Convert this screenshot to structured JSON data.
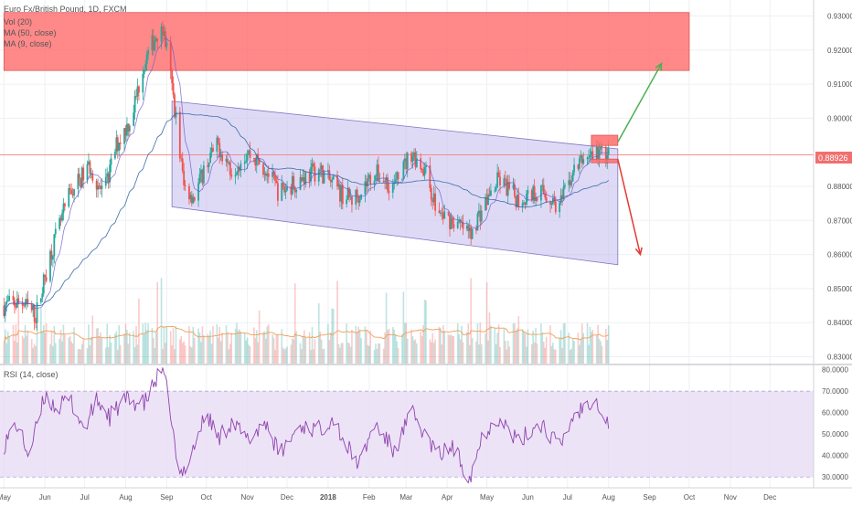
{
  "symbol_title": "Euro Fx/British Pound, 1D, FXCM",
  "indicators": [
    "Vol (20)",
    "MA (50, close)",
    "MA (9, close)"
  ],
  "rsi_label": "RSI (14, close)",
  "current_price_label": "0.88926",
  "colors": {
    "up": "#26a69a",
    "down": "#ef5350",
    "channel_fill": "#c8c2ee",
    "channel_stroke": "#7e75c4",
    "resistance_zone": "#ff6b6b",
    "rsi_line": "#8e44ad",
    "rsi_band": "#e9dcf5",
    "ma_long": "#3b6ea8",
    "ma_short": "#6a5acd",
    "vol_ma": "#f0a058",
    "arrow_up": "#4caf50",
    "arrow_down": "#e53935",
    "price_line": "#f08080"
  },
  "chart_data": [
    {
      "type": "candlestick",
      "title": "Euro Fx/British Pound, 1D, FXCM",
      "x_tick_labels": [
        "May",
        "Jun",
        "Jul",
        "Aug",
        "Sep",
        "Oct",
        "Nov",
        "Dec",
        "2018",
        "Feb",
        "Mar",
        "Apr",
        "May",
        "Jun",
        "Jul",
        "Aug",
        "Sep",
        "Oct",
        "Nov",
        "Dec"
      ],
      "y_tick_labels": [
        "0.93000",
        "0.92000",
        "0.91000",
        "0.90000",
        "0.88000",
        "0.87000",
        "0.86000",
        "0.85000",
        "0.84000",
        "0.83000"
      ],
      "ylim": [
        0.828,
        0.932
      ],
      "current_price": 0.88926,
      "trend": [
        [
          "2017-05-01",
          0.845
        ],
        [
          "2017-05-15",
          0.846
        ],
        [
          "2017-05-25",
          0.842
        ],
        [
          "2017-06-05",
          0.86
        ],
        [
          "2017-06-20",
          0.878
        ],
        [
          "2017-07-05",
          0.886
        ],
        [
          "2017-07-15",
          0.877
        ],
        [
          "2017-07-25",
          0.892
        ],
        [
          "2017-08-05",
          0.9
        ],
        [
          "2017-08-15",
          0.916
        ],
        [
          "2017-08-28",
          0.928
        ],
        [
          "2017-09-02",
          0.918
        ],
        [
          "2017-09-08",
          0.9
        ],
        [
          "2017-09-14",
          0.88
        ],
        [
          "2017-09-22",
          0.877
        ],
        [
          "2017-10-01",
          0.887
        ],
        [
          "2017-10-10",
          0.892
        ],
        [
          "2017-10-20",
          0.885
        ],
        [
          "2017-11-01",
          0.89
        ],
        [
          "2017-11-15",
          0.885
        ],
        [
          "2017-11-25",
          0.878
        ],
        [
          "2017-12-10",
          0.882
        ],
        [
          "2017-12-25",
          0.885
        ],
        [
          "2018-01-10",
          0.878
        ],
        [
          "2018-01-20",
          0.876
        ],
        [
          "2018-02-05",
          0.884
        ],
        [
          "2018-02-20",
          0.88
        ],
        [
          "2018-03-05",
          0.89
        ],
        [
          "2018-03-15",
          0.885
        ],
        [
          "2018-03-25",
          0.872
        ],
        [
          "2018-04-05",
          0.87
        ],
        [
          "2018-04-18",
          0.866
        ],
        [
          "2018-04-28",
          0.874
        ],
        [
          "2018-05-10",
          0.882
        ],
        [
          "2018-05-25",
          0.876
        ],
        [
          "2018-06-10",
          0.879
        ],
        [
          "2018-06-25",
          0.874
        ],
        [
          "2018-07-05",
          0.884
        ],
        [
          "2018-07-15",
          0.889
        ],
        [
          "2018-07-25",
          0.89
        ],
        [
          "2018-08-01",
          0.889
        ]
      ],
      "channel": {
        "upper": [
          [
            "2017-09-05",
            0.905
          ],
          [
            "2018-08-08",
            0.891
          ]
        ],
        "lower": [
          [
            "2017-09-05",
            0.874
          ],
          [
            "2018-08-08",
            0.857
          ]
        ]
      },
      "resistance_zone": {
        "from": "2017-05-01",
        "to": "2018-10-01",
        "y_low": 0.914,
        "y_high": 0.931
      },
      "breakout_box": {
        "from": "2018-07-19",
        "to": "2018-08-08",
        "y_low": 0.892,
        "y_high": 0.895
      },
      "support_box": {
        "from": "2018-07-19",
        "to": "2018-08-08",
        "y_low": 0.887,
        "y_high": 0.888
      },
      "arrow_up": {
        "from": [
          "2018-08-08",
          0.893
        ],
        "to": [
          "2018-09-10",
          0.916
        ]
      },
      "arrow_down": {
        "from": [
          "2018-08-08",
          0.888
        ],
        "to": [
          "2018-08-25",
          0.86
        ]
      }
    },
    {
      "type": "line",
      "title": "RSI (14, close)",
      "y_tick_labels": [
        "80.0000",
        "70.0000",
        "60.0000",
        "50.0000",
        "40.0000",
        "30.0000"
      ],
      "ylim": [
        25,
        82
      ],
      "band": [
        30,
        70
      ],
      "values": [
        [
          "2017-05-01",
          45
        ],
        [
          "2017-05-10",
          55
        ],
        [
          "2017-05-20",
          40
        ],
        [
          "2017-06-01",
          68
        ],
        [
          "2017-06-10",
          62
        ],
        [
          "2017-06-20",
          66
        ],
        [
          "2017-07-01",
          52
        ],
        [
          "2017-07-10",
          66
        ],
        [
          "2017-07-20",
          58
        ],
        [
          "2017-08-01",
          66
        ],
        [
          "2017-08-15",
          64
        ],
        [
          "2017-08-28",
          80
        ],
        [
          "2017-09-03",
          66
        ],
        [
          "2017-09-10",
          28
        ],
        [
          "2017-09-20",
          42
        ],
        [
          "2017-10-01",
          60
        ],
        [
          "2017-10-10",
          48
        ],
        [
          "2017-10-20",
          56
        ],
        [
          "2017-11-01",
          47
        ],
        [
          "2017-11-15",
          56
        ],
        [
          "2017-11-25",
          40
        ],
        [
          "2017-12-10",
          54
        ],
        [
          "2017-12-25",
          52
        ],
        [
          "2018-01-05",
          58
        ],
        [
          "2018-01-15",
          44
        ],
        [
          "2018-01-25",
          36
        ],
        [
          "2018-02-05",
          55
        ],
        [
          "2018-02-20",
          42
        ],
        [
          "2018-03-05",
          60
        ],
        [
          "2018-03-15",
          50
        ],
        [
          "2018-03-25",
          40
        ],
        [
          "2018-04-05",
          44
        ],
        [
          "2018-04-18",
          30
        ],
        [
          "2018-04-28",
          50
        ],
        [
          "2018-05-10",
          58
        ],
        [
          "2018-05-25",
          46
        ],
        [
          "2018-06-10",
          56
        ],
        [
          "2018-06-25",
          44
        ],
        [
          "2018-07-05",
          58
        ],
        [
          "2018-07-15",
          64
        ],
        [
          "2018-07-22",
          68
        ],
        [
          "2018-07-28",
          58
        ],
        [
          "2018-08-01",
          55
        ]
      ]
    }
  ]
}
